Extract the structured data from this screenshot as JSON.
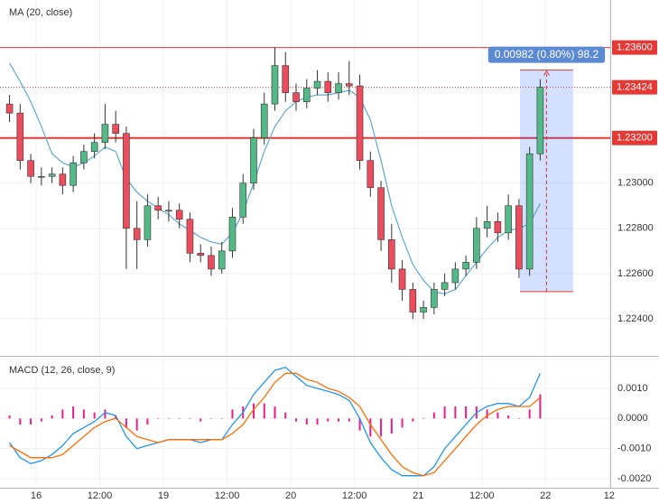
{
  "chart_data": [
    {
      "type": "candlestick",
      "title": "MA (20, close)",
      "x": [
        -5,
        -3,
        -1,
        1,
        3,
        5,
        7,
        9,
        11,
        13,
        15,
        17,
        19,
        21,
        23,
        25,
        27,
        29,
        31,
        33,
        35,
        37,
        39,
        41,
        43,
        45,
        47,
        49,
        51,
        53,
        55,
        57,
        59,
        61,
        63,
        65,
        67,
        69,
        71,
        73,
        75,
        77,
        79,
        81,
        83,
        85,
        87,
        89,
        91,
        93,
        95
      ],
      "open": [
        1.2335,
        1.2331,
        1.231,
        1.2303,
        1.2303,
        1.2304,
        1.2299,
        1.2309,
        1.2314,
        1.2318,
        1.2326,
        1.2322,
        1.228,
        1.2275,
        1.229,
        1.2288,
        1.2288,
        1.2284,
        1.2269,
        1.2268,
        1.2262,
        1.227,
        1.2285,
        1.23,
        1.232,
        1.2335,
        1.2352,
        1.234,
        1.2336,
        1.2342,
        1.2345,
        1.234,
        1.2344,
        1.2343,
        1.231,
        1.2298,
        1.2275,
        1.2262,
        1.2253,
        1.2243,
        1.2245,
        1.2253,
        1.2256,
        1.2262,
        1.2265,
        1.228,
        1.2283,
        1.2278,
        1.229,
        1.2262,
        1.2313
      ],
      "high": [
        1.2339,
        1.2335,
        1.2313,
        1.2307,
        1.2307,
        1.2307,
        1.2312,
        1.2317,
        1.2322,
        1.2335,
        1.2332,
        1.2325,
        1.2292,
        1.2295,
        1.2294,
        1.2292,
        1.2291,
        1.2287,
        1.2273,
        1.2272,
        1.2274,
        1.2289,
        1.2304,
        1.2324,
        1.234,
        1.236,
        1.2358,
        1.2344,
        1.2346,
        1.235,
        1.2349,
        1.2349,
        1.2354,
        1.2348,
        1.2314,
        1.2301,
        1.2282,
        1.2266,
        1.2256,
        1.2248,
        1.2256,
        1.226,
        1.2265,
        1.2268,
        1.2285,
        1.229,
        1.2287,
        1.2295,
        1.2293,
        1.2316,
        1.2346
      ],
      "low": [
        1.2327,
        1.2306,
        1.23,
        1.2299,
        1.23,
        1.2295,
        1.2296,
        1.2306,
        1.2311,
        1.2315,
        1.2318,
        1.2262,
        1.2262,
        1.2272,
        1.2284,
        1.2283,
        1.228,
        1.2265,
        1.2265,
        1.2259,
        1.226,
        1.2267,
        1.2282,
        1.2297,
        1.2317,
        1.2332,
        1.2336,
        1.2332,
        1.2333,
        1.2339,
        1.2336,
        1.2337,
        1.2339,
        1.2306,
        1.2294,
        1.227,
        1.2256,
        1.2248,
        1.224,
        1.224,
        1.2242,
        1.225,
        1.2253,
        1.2259,
        1.2262,
        1.2276,
        1.2274,
        1.2275,
        1.2258,
        1.2259,
        1.231
      ],
      "close": [
        1.2331,
        1.231,
        1.2303,
        1.2303,
        1.2304,
        1.2299,
        1.2309,
        1.2314,
        1.2318,
        1.2326,
        1.2322,
        1.228,
        1.2275,
        1.229,
        1.2288,
        1.2288,
        1.2284,
        1.2269,
        1.2268,
        1.2262,
        1.227,
        1.2285,
        1.23,
        1.232,
        1.2335,
        1.2352,
        1.234,
        1.2336,
        1.2342,
        1.2345,
        1.234,
        1.2344,
        1.2343,
        1.231,
        1.2298,
        1.2275,
        1.2262,
        1.2253,
        1.2243,
        1.2245,
        1.2253,
        1.2256,
        1.2262,
        1.2265,
        1.228,
        1.2283,
        1.2278,
        1.229,
        1.2262,
        1.2313,
        1.23424
      ],
      "up_color": "#53b987",
      "down_color": "#eb4d5c",
      "overlay": {
        "color": "#5fa8d3",
        "values": [
          1.2353,
          1.2345,
          1.2336,
          1.2325,
          1.2313,
          1.2309,
          1.2307,
          1.2309,
          1.2312,
          1.2316,
          1.2314,
          1.2302,
          1.2296,
          1.2292,
          1.2289,
          1.2286,
          1.2282,
          1.2279,
          1.2276,
          1.2274,
          1.2273,
          1.2278,
          1.2287,
          1.23,
          1.2314,
          1.2325,
          1.2332,
          1.2336,
          1.2338,
          1.2339,
          1.2339,
          1.234,
          1.2341,
          1.2338,
          1.2328,
          1.231,
          1.229,
          1.2276,
          1.2264,
          1.2257,
          1.2252,
          1.2251,
          1.2253,
          1.2259,
          1.2265,
          1.2271,
          1.2276,
          1.2279,
          1.228,
          1.2282,
          1.2291
        ]
      },
      "xlim": [
        -6.8,
        108.2
      ],
      "ylim": [
        1.2224,
        1.2381
      ],
      "xticks": [
        {
          "value": 0,
          "label": "16"
        },
        {
          "value": 12,
          "label": "12:00"
        },
        {
          "value": 24,
          "label": "19"
        },
        {
          "value": 36,
          "label": "12:00"
        },
        {
          "value": 48,
          "label": "20"
        },
        {
          "value": 60,
          "label": "12:00"
        },
        {
          "value": 72,
          "label": "21"
        },
        {
          "value": 84,
          "label": "12:00"
        },
        {
          "value": 96,
          "label": "22"
        },
        {
          "value": 108,
          "label": "12"
        }
      ],
      "yticks": [
        {
          "value": 1.224,
          "label": "1.22400"
        },
        {
          "value": 1.226,
          "label": "1.22600"
        },
        {
          "value": 1.228,
          "label": "1.22800"
        },
        {
          "value": 1.23,
          "label": "1.23000"
        }
      ],
      "grid": true,
      "levels": [
        {
          "value": 1.236,
          "label": "1.23600",
          "style": "solid",
          "color": "#e53935"
        },
        {
          "value": 1.23424,
          "label": "1.23424",
          "style": "dotted",
          "color": "#e53935"
        },
        {
          "value": 1.232,
          "label": "1.23200",
          "style": "thick",
          "color": "#e53935"
        }
      ],
      "measure": {
        "label": "0.00982 (0.80%) 98.2",
        "from_x": 91.2,
        "to_x": 101.2,
        "from_price": 1.2252,
        "to_price": 1.235,
        "color": "#2962ff",
        "line_color": "#e53935"
      }
    },
    {
      "type": "macd",
      "title": "MACD (12, 26, close, 9)",
      "ylim": [
        -0.0023,
        0.00205
      ],
      "yticks": [
        {
          "value": 0.001,
          "label": "0.0010"
        },
        {
          "value": 0,
          "label": "0.0000"
        },
        {
          "value": -0.001,
          "label": "-0.0010"
        },
        {
          "value": -0.002,
          "label": "-0.0020"
        }
      ],
      "histogram": {
        "color": "#e91e8c",
        "values": [
          0.0001,
          -0.0002,
          -0.0002,
          -0.0001,
          0.0001,
          0.0003,
          0.0004,
          0.0003,
          0.0002,
          0.0003,
          0.0001,
          -0.0003,
          -0.0004,
          -0.0002,
          0,
          0,
          0,
          0,
          -0.0001,
          0,
          0,
          0.0003,
          0.0004,
          0.0005,
          0.0005,
          0.0004,
          0.0002,
          -0.0001,
          -0.0002,
          -0.0002,
          -0.0001,
          -0.0001,
          -0.0001,
          -0.0004,
          -0.0006,
          -0.0006,
          -0.0005,
          -0.0003,
          -0.0001,
          0,
          0.0002,
          0.0004,
          0.0004,
          0.0004,
          0.0004,
          0.0003,
          0.0002,
          0.0001,
          0,
          0.0003,
          0.0008
        ]
      },
      "series": [
        {
          "color": "#2196f3",
          "values": [
            -0.0008,
            -0.0013,
            -0.0015,
            -0.0014,
            -0.0012,
            -0.0009,
            -0.0005,
            -0.0003,
            -0.0001,
            0.0002,
            0.0001,
            -0.0006,
            -0.001,
            -0.0009,
            -0.0008,
            -0.0007,
            -0.0007,
            -0.0007,
            -0.0008,
            -0.0007,
            -0.0007,
            -0.0002,
            0.0002,
            0.0008,
            0.0012,
            0.0016,
            0.0017,
            0.0014,
            0.0011,
            0.001,
            0.0009,
            0.0008,
            0.0006,
            0,
            -0.0008,
            -0.0013,
            -0.0017,
            -0.0019,
            -0.0019,
            -0.0019,
            -0.0016,
            -0.001,
            -0.0006,
            -0.0002,
            0.0002,
            0.0004,
            0.0005,
            0.0005,
            0.0004,
            0.0007,
            0.0015
          ]
        },
        {
          "color": "#ff6d00",
          "values": [
            -0.0009,
            -0.0011,
            -0.0013,
            -0.0013,
            -0.0013,
            -0.0012,
            -0.0009,
            -0.0006,
            -0.0003,
            -0.0001,
            0,
            -0.0003,
            -0.0006,
            -0.0007,
            -0.0008,
            -0.0007,
            -0.0007,
            -0.0007,
            -0.0007,
            -0.0007,
            -0.0007,
            -0.0005,
            -0.0002,
            0.0003,
            0.0007,
            0.0012,
            0.0015,
            0.0015,
            0.0013,
            0.0012,
            0.001,
            0.0009,
            0.0007,
            0.0004,
            -0.0002,
            -0.0007,
            -0.0012,
            -0.0016,
            -0.0018,
            -0.0019,
            -0.0018,
            -0.0014,
            -0.001,
            -0.0006,
            -0.0002,
            0.0001,
            0.0003,
            0.0004,
            0.0004,
            0.0004,
            0.0007
          ]
        }
      ],
      "grid": true
    }
  ]
}
